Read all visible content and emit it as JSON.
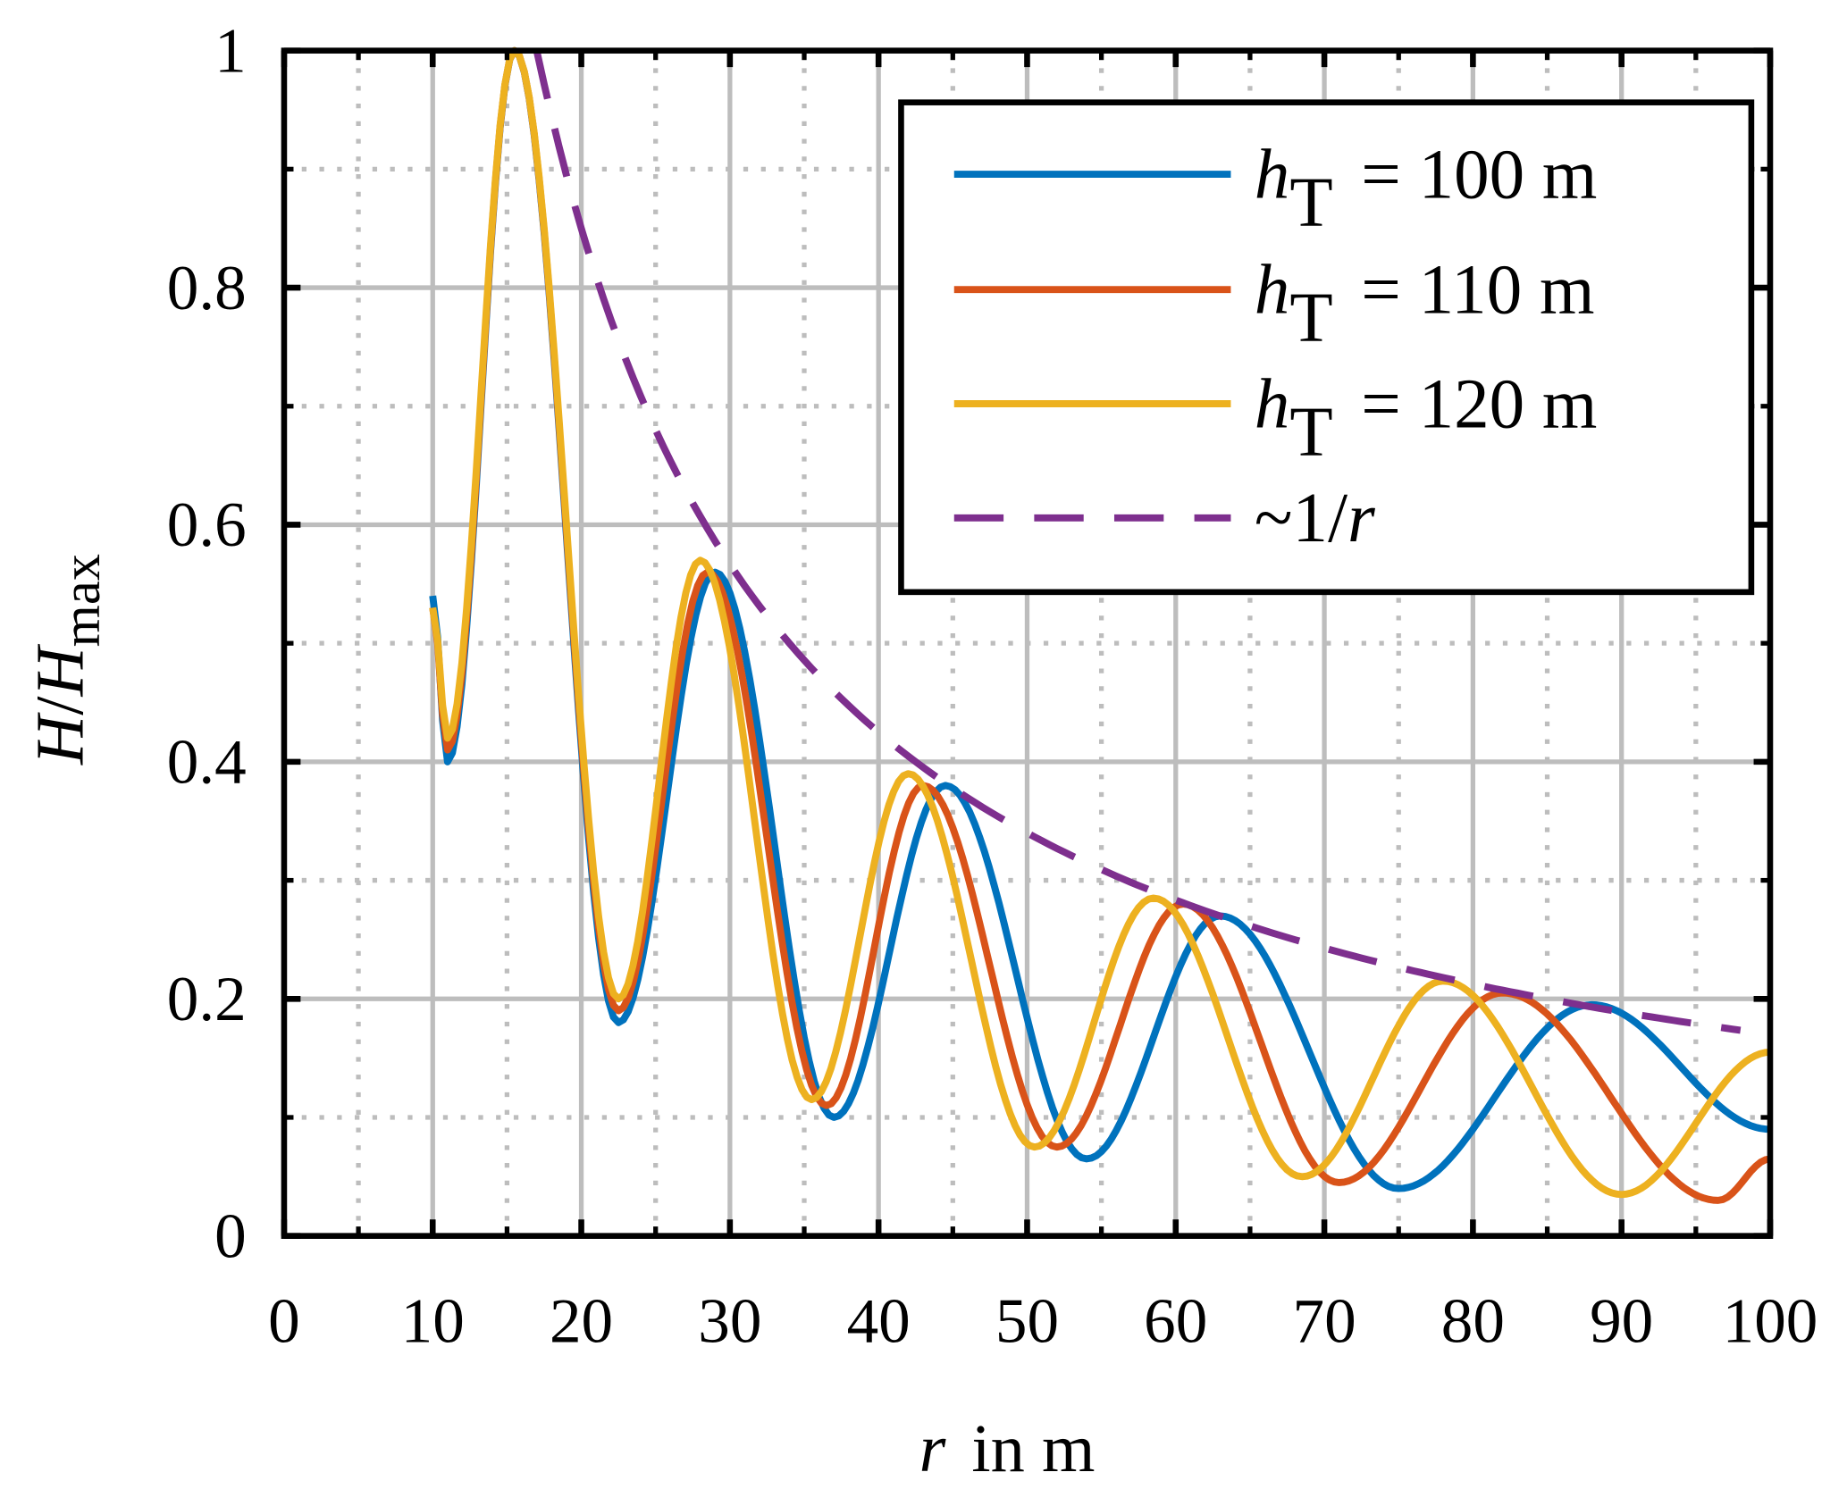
{
  "chart_data": {
    "type": "line",
    "title": "",
    "xlabel": {
      "var": "r",
      "rest": "in m"
    },
    "ylabel": {
      "num": "H",
      "slash": "/",
      "den": "H",
      "sub": "max"
    },
    "xlim": [
      0,
      100
    ],
    "ylim": [
      0,
      1
    ],
    "xticks": [
      "0",
      "10",
      "20",
      "30",
      "40",
      "50",
      "60",
      "70",
      "80",
      "90",
      "100"
    ],
    "yticks": [
      "0",
      "0.2",
      "0.4",
      "0.6",
      "0.8",
      "1"
    ],
    "grid": true,
    "legend_position": "top-right",
    "series": [
      {
        "name": "h_T = 100 m",
        "legend": {
          "var": "h",
          "sub": "T",
          "rest": "= 100 m"
        },
        "color": "#0072BD",
        "dash": false,
        "points": [
          [
            10,
            0.54
          ],
          [
            11,
            0.4
          ],
          [
            15.5,
            1.0
          ],
          [
            22.5,
            0.18
          ],
          [
            29,
            0.56
          ],
          [
            37,
            0.1
          ],
          [
            44.5,
            0.38
          ],
          [
            54,
            0.065
          ],
          [
            63,
            0.27
          ],
          [
            75,
            0.04
          ],
          [
            88,
            0.195
          ],
          [
            100,
            0.09
          ]
        ]
      },
      {
        "name": "h_T = 110 m",
        "legend": {
          "var": "h",
          "sub": "T",
          "rest": "= 110 m"
        },
        "color": "#D95319",
        "dash": false,
        "points": [
          [
            10,
            0.53
          ],
          [
            11,
            0.41
          ],
          [
            15.5,
            1.0
          ],
          [
            22.5,
            0.19
          ],
          [
            28.5,
            0.56
          ],
          [
            36.5,
            0.11
          ],
          [
            43,
            0.38
          ],
          [
            52,
            0.075
          ],
          [
            60.5,
            0.28
          ],
          [
            71,
            0.045
          ],
          [
            82,
            0.205
          ],
          [
            96.5,
            0.03
          ],
          [
            100,
            0.065
          ]
        ]
      },
      {
        "name": "h_T = 120 m",
        "legend": {
          "var": "h",
          "sub": "T",
          "rest": "= 120 m"
        },
        "color": "#EDB120",
        "dash": false,
        "points": [
          [
            10,
            0.53
          ],
          [
            11,
            0.42
          ],
          [
            15.5,
            1.0
          ],
          [
            22.5,
            0.2
          ],
          [
            28,
            0.57
          ],
          [
            35.5,
            0.115
          ],
          [
            42,
            0.39
          ],
          [
            50.5,
            0.075
          ],
          [
            58.5,
            0.285
          ],
          [
            68.5,
            0.05
          ],
          [
            78,
            0.215
          ],
          [
            90,
            0.035
          ],
          [
            100,
            0.155
          ]
        ]
      },
      {
        "name": "~1/r",
        "legend": {
          "var": "",
          "sub": "",
          "prefix": "~1/",
          "rvar": "r"
        },
        "color": "#7E2F8E",
        "dash": true,
        "function": "17/r",
        "x_range": [
          17,
          98
        ]
      }
    ]
  }
}
